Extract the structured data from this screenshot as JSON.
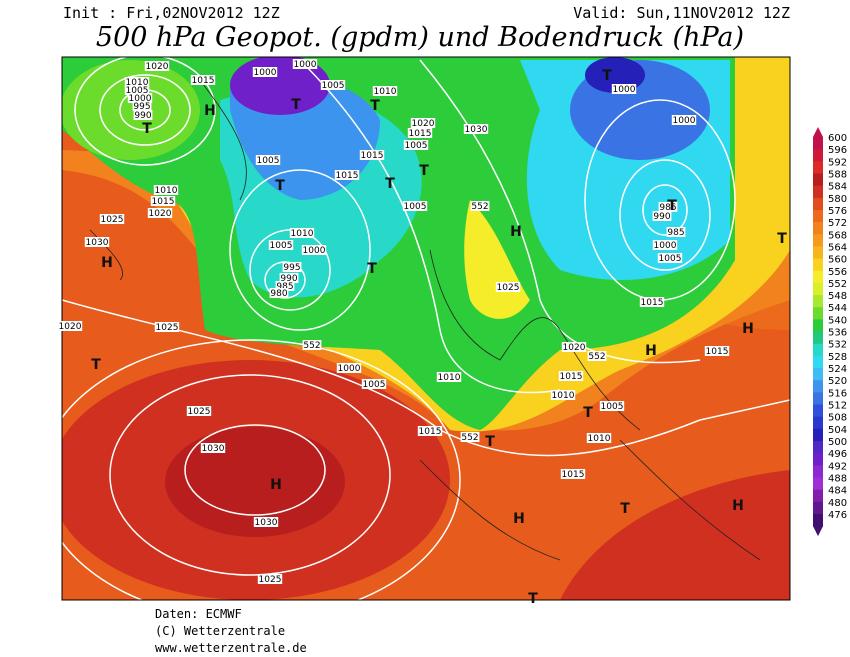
{
  "header": {
    "init": "Init : Fri,02NOV2012 12Z",
    "valid": "Valid: Sun,11NOV2012 12Z",
    "title": "500 hPa Geopot. (gpdm) und Bodendruck (hPa)"
  },
  "map": {
    "isobar_labels": [
      "1020",
      "1015",
      "1000",
      "1000",
      "1010",
      "1005",
      "1000",
      "995",
      "990",
      "1005",
      "1010",
      "1020",
      "1015",
      "1005",
      "1030",
      "1000",
      "1000",
      "1005",
      "1015",
      "1015",
      "1005",
      "1010",
      "1015",
      "1020",
      "1025",
      "1030",
      "1010",
      "1005",
      "1000",
      "995",
      "990",
      "985",
      "980",
      "552",
      "985",
      "990",
      "985",
      "1000",
      "1005",
      "1025",
      "1015",
      "1020",
      "1025",
      "552",
      "1000",
      "1005",
      "1010",
      "1020",
      "552",
      "1015",
      "1010",
      "1005",
      "1010",
      "1015",
      "1015",
      "552",
      "1025",
      "1030",
      "1030",
      "1015",
      "1025"
    ],
    "pressure_centers": [
      "T",
      "H",
      "T",
      "T",
      "T",
      "T",
      "T",
      "T",
      "H",
      "H",
      "T",
      "T",
      "T",
      "H",
      "T",
      "H",
      "T",
      "T",
      "H",
      "H",
      "T",
      "H",
      "T"
    ]
  },
  "legend": {
    "labels": [
      "600",
      "596",
      "592",
      "588",
      "584",
      "580",
      "576",
      "572",
      "568",
      "564",
      "560",
      "556",
      "552",
      "548",
      "544",
      "540",
      "536",
      "532",
      "528",
      "524",
      "520",
      "516",
      "512",
      "508",
      "504",
      "500",
      "496",
      "492",
      "488",
      "484",
      "480",
      "476"
    ],
    "colors": [
      "#c0104e",
      "#d0183a",
      "#dc2a2a",
      "#b81e1e",
      "#d03020",
      "#e24c1c",
      "#ec6a1c",
      "#f2821e",
      "#f59a1e",
      "#f6b41e",
      "#f8d21e",
      "#f5ec2a",
      "#d8f02a",
      "#a8e830",
      "#6cdc2c",
      "#2ccc3a",
      "#20c880",
      "#28d8c8",
      "#30d8f0",
      "#40bcf4",
      "#3c94ee",
      "#3a74e4",
      "#3050dc",
      "#2838d0",
      "#2420b8",
      "#5028c4",
      "#7020c8",
      "#8a2ad0",
      "#a030d4",
      "#8020a8",
      "#601890",
      "#401070"
    ]
  },
  "footer": {
    "line1": "Daten: ECMWF",
    "line2": "(C) Wetterzentrale",
    "line3": "www.wetterzentrale.de"
  }
}
